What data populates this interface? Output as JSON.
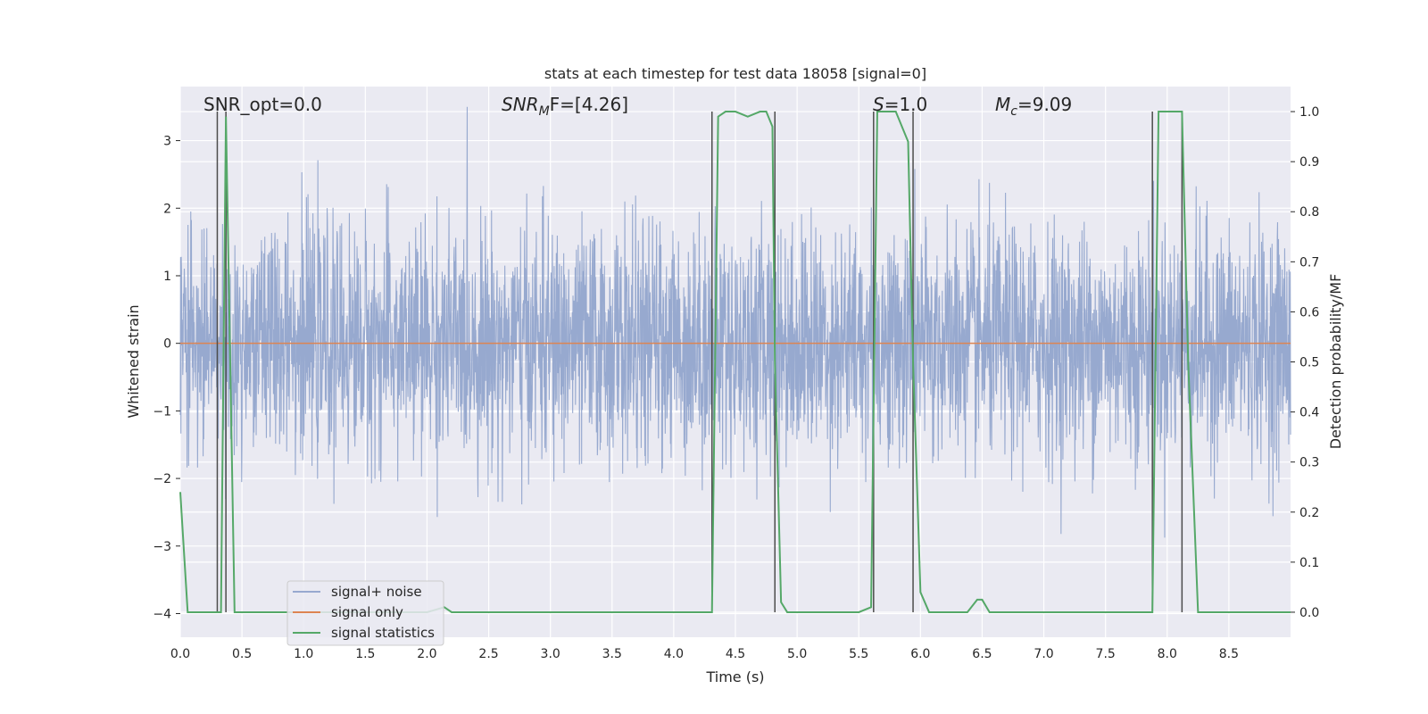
{
  "chart_data": {
    "type": "line",
    "title": "stats at each timestep for test data 18058 [signal=0]",
    "xlabel": "Time (s)",
    "ylabel_left": "Whitened strain",
    "ylabel_right": "Detection probability/MF",
    "xlim": [
      0.0,
      9.0
    ],
    "ylim_left": [
      -4.35,
      3.8
    ],
    "ylim_right": [
      -0.05,
      1.05
    ],
    "xticks": [
      "0.0",
      "0.5",
      "1.0",
      "1.5",
      "2.0",
      "2.5",
      "3.0",
      "3.5",
      "4.0",
      "4.5",
      "5.0",
      "5.5",
      "6.0",
      "6.5",
      "7.0",
      "7.5",
      "8.0",
      "8.5"
    ],
    "yticks_left": [
      "3",
      "2",
      "1",
      "0",
      "−1",
      "−2",
      "−3",
      "−4"
    ],
    "yticks_right": [
      "1.0",
      "0.9",
      "0.8",
      "0.7",
      "0.6",
      "0.5",
      "0.4",
      "0.3",
      "0.2",
      "0.1",
      "0.0"
    ],
    "grid": true,
    "legend_position": "lower-left",
    "legend": [
      "signal+ noise",
      "signal only",
      "signal statistics"
    ],
    "annotations": {
      "snr_opt": "SNR_opt=0.0",
      "snr_mf_main": "SNR",
      "snr_mf_sub": "M",
      "snr_mf_rest": "F=[4.26]",
      "s_main": "S",
      "s_rest": "=1.0",
      "mc_main": "M",
      "mc_sub": "c",
      "mc_rest": "=9.09"
    },
    "colors": {
      "noise": "#97a9cf",
      "signal_only": "#dd8452",
      "statistics": "#55a868",
      "vlines": "#4c4c4c",
      "axes_bg": "#eaeaf2",
      "grid": "#ffffff"
    },
    "series": [
      {
        "name": "signal+ noise",
        "description_values": "white-noise strain, approx. std 0.85, peaks to about ±3.5, 2048 Hz sampling",
        "std": 0.85
      },
      {
        "name": "signal only",
        "x": [
          0.0,
          9.0
        ],
        "y": [
          0.0,
          0.0
        ]
      },
      {
        "name": "signal statistics",
        "x": [
          0.0,
          0.06,
          0.25,
          0.3,
          0.33,
          0.37,
          0.44,
          0.5,
          1.0,
          1.5,
          2.0,
          2.14,
          2.2,
          3.0,
          3.5,
          4.0,
          4.31,
          4.36,
          4.42,
          4.5,
          4.6,
          4.7,
          4.75,
          4.8,
          4.82,
          4.87,
          4.92,
          5.0,
          5.5,
          5.6,
          5.65,
          5.7,
          5.8,
          5.9,
          5.94,
          6.0,
          6.07,
          6.3,
          6.38,
          6.46,
          6.5,
          6.56,
          6.7,
          7.0,
          7.5,
          7.88,
          7.93,
          8.0,
          8.12,
          8.17,
          8.25,
          8.5,
          9.0
        ],
        "y": [
          0.24,
          0.0,
          0.0,
          0.0,
          0.0,
          0.99,
          0.0,
          0.0,
          0.0,
          0.0,
          0.0,
          0.01,
          0.0,
          0.0,
          0.0,
          0.0,
          0.0,
          0.99,
          1.0,
          1.0,
          0.99,
          1.0,
          1.0,
          0.97,
          0.5,
          0.02,
          0.0,
          0.0,
          0.0,
          0.01,
          1.0,
          1.0,
          1.0,
          0.94,
          0.5,
          0.04,
          0.0,
          0.0,
          0.0,
          0.025,
          0.025,
          0.0,
          0.0,
          0.0,
          0.0,
          0.0,
          1.0,
          1.0,
          1.0,
          0.5,
          0.0,
          0.0,
          0.0
        ]
      }
    ],
    "vertical_lines_x": [
      0.3,
      0.37,
      4.31,
      4.82,
      5.62,
      5.94,
      7.88,
      8.12
    ]
  }
}
